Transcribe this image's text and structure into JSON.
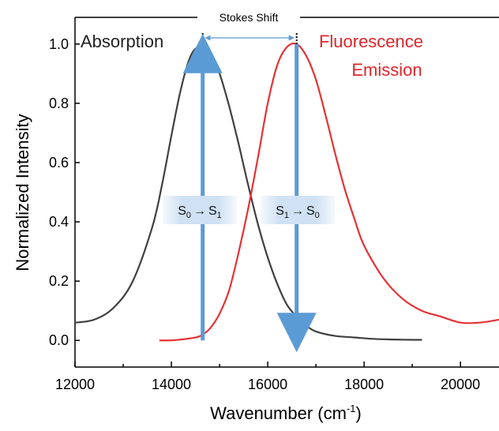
{
  "chart_data": {
    "type": "line",
    "xlabel": "Wavenumber (cm",
    "xlabel_sup": "-1",
    "xlabel_close": ")",
    "ylabel": "Normalized Intensity",
    "xlim": [
      12000,
      20800
    ],
    "ylim": [
      -0.09,
      1.09
    ],
    "x_ticks": [
      12000,
      14000,
      16000,
      18000,
      20000
    ],
    "x_tick_labels": [
      "12000",
      "14000",
      "16000",
      "18000",
      "20000"
    ],
    "y_ticks": [
      0.0,
      0.2,
      0.4,
      0.6,
      0.8,
      1.0
    ],
    "y_tick_labels": [
      "0.0",
      "0.2",
      "0.4",
      "0.6",
      "0.8",
      "1.0"
    ],
    "grid": false,
    "series": [
      {
        "name": "Absorption",
        "color": "#404040",
        "x": [
          12000,
          12400,
          12800,
          13200,
          13600,
          13800,
          14000,
          14200,
          14400,
          14600,
          14700,
          14800,
          15000,
          15200,
          15400,
          15600,
          15800,
          16000,
          16200,
          16400,
          16600,
          16800,
          17000,
          17400,
          17800,
          18200,
          18600,
          19000,
          19200
        ],
        "y": [
          0.06,
          0.07,
          0.11,
          0.2,
          0.38,
          0.52,
          0.69,
          0.85,
          0.96,
          0.995,
          0.99,
          0.97,
          0.9,
          0.79,
          0.66,
          0.52,
          0.39,
          0.28,
          0.19,
          0.12,
          0.08,
          0.05,
          0.03,
          0.015,
          0.01,
          0.005,
          0.003,
          0.002,
          0.002
        ]
      },
      {
        "name": "Fluorescence Emission",
        "color": "#e53236",
        "x": [
          13750,
          14000,
          14200,
          14400,
          14600,
          14800,
          15000,
          15200,
          15400,
          15600,
          15800,
          16000,
          16200,
          16400,
          16600,
          16800,
          17000,
          17200,
          17400,
          17600,
          17800,
          18000,
          18400,
          18800,
          19200,
          19600,
          20000,
          20400,
          20800
        ],
        "y": [
          0.0,
          0.0,
          0.003,
          0.007,
          0.015,
          0.04,
          0.09,
          0.17,
          0.3,
          0.45,
          0.62,
          0.8,
          0.93,
          0.99,
          1.0,
          0.96,
          0.88,
          0.76,
          0.63,
          0.51,
          0.41,
          0.32,
          0.21,
          0.14,
          0.1,
          0.08,
          0.06,
          0.06,
          0.07
        ]
      }
    ],
    "annotations": {
      "absorption_label": "Absorption",
      "fluorescence_label_1": "Fluorescence",
      "fluorescence_label_2": "Emission",
      "stokes_shift": "Stokes Shift",
      "absorption_peak_x": 14650,
      "emission_peak_x": 16600,
      "transition_up": {
        "S": "S",
        "from": "0",
        "to": "1",
        "arrow": "→"
      },
      "transition_down": {
        "S": "S",
        "from": "1",
        "to": "0",
        "arrow": "→"
      }
    },
    "colors": {
      "arrow": "#5b9bd5",
      "label_box": "#cfe1f3"
    }
  }
}
